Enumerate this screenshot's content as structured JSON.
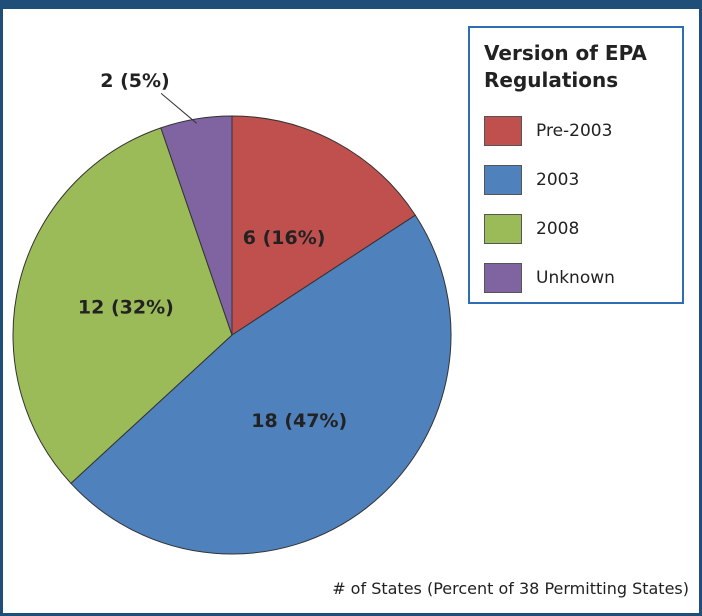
{
  "chart_data": {
    "type": "pie",
    "legend_title": "Version of EPA Regulations",
    "categories": [
      "Pre-2003",
      "2003",
      "2008",
      "Unknown"
    ],
    "values": [
      6,
      18,
      12,
      2
    ],
    "value_labels": [
      "6 (16%)",
      "18 (47%)",
      "12 (32%)",
      "2 (5%)"
    ],
    "colors": [
      "#c0504d",
      "#4f81bd",
      "#9bbb59",
      "#8064a2"
    ],
    "note": "# of States (Percent of 38 Permitting States)"
  }
}
